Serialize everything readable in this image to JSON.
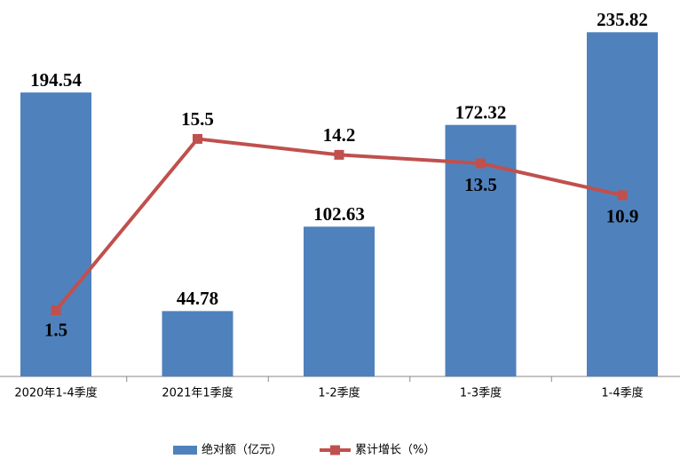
{
  "chart_data": {
    "type": "bar",
    "categories": [
      "2020年1-4季度",
      "2021年1季度",
      "1-2季度",
      "1-3季度",
      "1-4季度"
    ],
    "series": [
      {
        "name": "绝对额（亿元）",
        "type": "bar",
        "color": "#4f81bd",
        "axis": "y",
        "values": [
          194.54,
          44.78,
          102.63,
          172.32,
          235.82
        ]
      },
      {
        "name": "累计增长（%）",
        "type": "line",
        "color": "#c0504d",
        "axis": "y2",
        "values": [
          1.5,
          15.5,
          14.2,
          13.5,
          10.9
        ]
      }
    ],
    "ylim": [
      0,
      250
    ],
    "y2lim": [
      -3.9,
      25.9
    ],
    "grid": false
  }
}
